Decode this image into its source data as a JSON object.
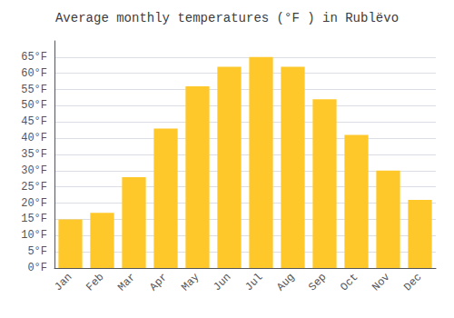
{
  "chart_data": {
    "type": "bar",
    "title": "Average monthly temperatures (°F ) in Rublëvo",
    "categories": [
      "Jan",
      "Feb",
      "Mar",
      "Apr",
      "May",
      "Jun",
      "Jul",
      "Aug",
      "Sep",
      "Oct",
      "Nov",
      "Dec"
    ],
    "values": [
      15,
      17,
      28,
      43,
      56,
      62,
      65,
      62,
      52,
      41,
      30,
      21
    ],
    "color": "#FFC82A",
    "ylim": [
      0,
      70
    ],
    "yticks": [
      {
        "value": 0,
        "label": "0°F"
      },
      {
        "value": 5,
        "label": "5°F"
      },
      {
        "value": 10,
        "label": "10°F"
      },
      {
        "value": 15,
        "label": "15°F"
      },
      {
        "value": 20,
        "label": "20°F"
      },
      {
        "value": 25,
        "label": "25°F"
      },
      {
        "value": 30,
        "label": "30°F"
      },
      {
        "value": 35,
        "label": "35°F"
      },
      {
        "value": 40,
        "label": "40°F"
      },
      {
        "value": 45,
        "label": "45°F"
      },
      {
        "value": 50,
        "label": "50°F"
      },
      {
        "value": 55,
        "label": "55°F"
      },
      {
        "value": 60,
        "label": "60°F"
      },
      {
        "value": 65,
        "label": "65°F"
      }
    ],
    "grid": true
  }
}
